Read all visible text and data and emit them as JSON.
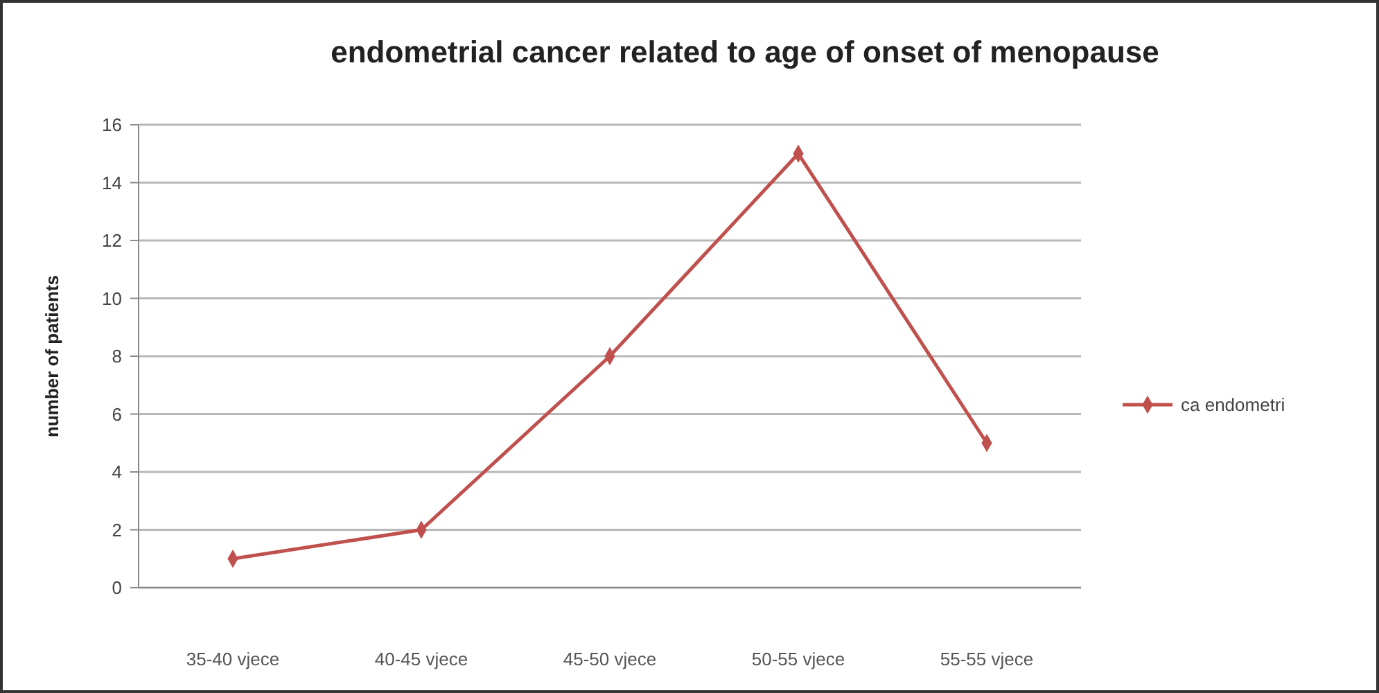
{
  "chart_data": {
    "type": "line",
    "title": "endometrial cancer  related to age of onset of menopause",
    "ylabel": "number of patients",
    "categories": [
      "35-40 vjece",
      "40-45 vjece",
      "45-50 vjece",
      "50-55 vjece",
      "55-55 vjece"
    ],
    "series": [
      {
        "name": "ca endometri",
        "color": "#c0504d",
        "values": [
          1,
          2,
          8,
          15,
          5
        ]
      }
    ],
    "ylim": [
      0,
      16
    ],
    "yticks": [
      0,
      2,
      4,
      6,
      8,
      10,
      12,
      14,
      16
    ],
    "grid": "y",
    "legend": "right",
    "marker": "diamond"
  }
}
